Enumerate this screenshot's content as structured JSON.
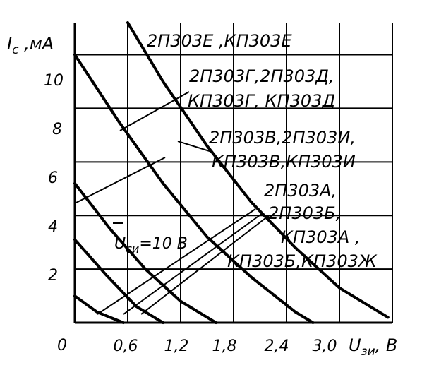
{
  "chart_data": {
    "type": "line",
    "xlabel": "U_зи, В",
    "xlabel_main": "U",
    "xlabel_sub": "зи",
    "xlabel_unit": ", В",
    "ylabel": "I_с ,мА",
    "ylabel_main": "I",
    "ylabel_sub": "с",
    "ylabel_unit": " ,мА",
    "xlim": [
      0,
      3.6
    ],
    "ylim": [
      0,
      11.2
    ],
    "x_ticks": [
      "0,6",
      "1,2",
      "1,8",
      "2,4",
      "3,0"
    ],
    "y_ticks": [
      "2",
      "4",
      "6",
      "8",
      "10"
    ],
    "origin_label": "0",
    "grid": true,
    "grid_x": [
      0,
      0.6,
      1.2,
      1.8,
      2.4,
      3.0,
      3.6
    ],
    "grid_y": [
      0,
      2,
      4,
      6,
      8,
      10
    ],
    "parameter_label": {
      "main": "U",
      "sub": "си",
      "value": "=10 В"
    },
    "series": [
      {
        "x": [
          0,
          0.25,
          0.55
        ],
        "y": [
          1.0,
          0.4,
          0.0
        ]
      },
      {
        "x": [
          0,
          0.35,
          0.7,
          1.0
        ],
        "y": [
          3.1,
          1.8,
          0.6,
          0.0
        ]
      },
      {
        "x": [
          0,
          0.4,
          0.8,
          1.2,
          1.6
        ],
        "y": [
          5.2,
          3.5,
          2.0,
          0.8,
          0.0
        ]
      },
      {
        "x": [
          0,
          0.5,
          1.0,
          1.5,
          2.0,
          2.5,
          2.7
        ],
        "y": [
          10.0,
          7.5,
          5.2,
          3.2,
          1.7,
          0.4,
          0.0
        ]
      },
      {
        "x": [
          0.6,
          1.0,
          1.5,
          2.0,
          2.5,
          3.0,
          3.55
        ],
        "y": [
          11.2,
          9.0,
          6.6,
          4.5,
          2.8,
          1.3,
          0.2
        ]
      }
    ],
    "annotations": [
      {
        "lines": [
          "2П303Е ,КП303Е"
        ]
      },
      {
        "lines": [
          "2П303Г,2П303Д,",
          "КП303Г, КП303Д"
        ]
      },
      {
        "lines": [
          "2П303В,2П303И,",
          "КП303В,КП303И"
        ]
      },
      {
        "lines": [
          "2П303А,",
          "2П303Б,",
          "КП303А ,",
          "КП303Б,КП303Ж"
        ]
      }
    ]
  }
}
